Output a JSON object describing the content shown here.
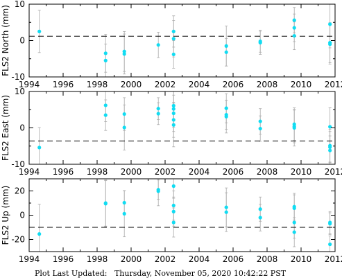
{
  "footer": "Plot Last Updated:   Thursday, November 05, 2020 10:42:22 PST",
  "colors": {
    "point": "#11dcf2",
    "errorbar": "#aaaaaa",
    "axis": "#000000",
    "mean_line": "#000000"
  },
  "chart_data": [
    {
      "type": "scatter",
      "ylabel": "FLS2 North (mm)",
      "xlim": [
        1994,
        2012
      ],
      "ylim": [
        -10,
        10
      ],
      "xticks": [
        1994,
        1996,
        1998,
        2000,
        2002,
        2004,
        2006,
        2008,
        2010,
        2012
      ],
      "yticks": [
        -10,
        0,
        10
      ],
      "mean": 1.2,
      "points": [
        {
          "x": 1994.6,
          "y": 2.5,
          "err": 5.8
        },
        {
          "x": 1998.5,
          "y": -3.5,
          "err": 5.2
        },
        {
          "x": 1998.5,
          "y": -5.5,
          "err": 4.5
        },
        {
          "x": 1999.6,
          "y": -3.0,
          "err": 5.5
        },
        {
          "x": 1999.6,
          "y": -3.7,
          "err": 5.5
        },
        {
          "x": 2001.6,
          "y": -1.2,
          "err": 3.5
        },
        {
          "x": 2002.5,
          "y": 2.5,
          "err": 4.3
        },
        {
          "x": 2002.5,
          "y": 0.5,
          "err": 5.0
        },
        {
          "x": 2002.5,
          "y": -3.8,
          "err": 3.8
        },
        {
          "x": 2005.6,
          "y": -1.5,
          "err": 5.5
        },
        {
          "x": 2005.6,
          "y": -3.2,
          "err": 3.8
        },
        {
          "x": 2007.6,
          "y": -0.2,
          "err": 3.0
        },
        {
          "x": 2007.6,
          "y": -0.6,
          "err": 3.2
        },
        {
          "x": 2009.6,
          "y": 5.6,
          "err": 3.5
        },
        {
          "x": 2009.6,
          "y": 3.5,
          "err": 3.8
        },
        {
          "x": 2009.6,
          "y": 1.3,
          "err": 3.8
        },
        {
          "x": 2011.7,
          "y": 4.5,
          "err": 6.5
        },
        {
          "x": 2011.7,
          "y": -0.6,
          "err": 5.5
        },
        {
          "x": 2011.7,
          "y": -1.0,
          "err": 5.5
        }
      ]
    },
    {
      "type": "scatter",
      "ylabel": "FLS2 East (mm)",
      "xlim": [
        1994,
        2012
      ],
      "ylim": [
        -10,
        10
      ],
      "xticks": [
        1994,
        1996,
        1998,
        2000,
        2002,
        2004,
        2006,
        2008,
        2010,
        2012
      ],
      "yticks": [
        -10,
        0,
        10
      ],
      "mean": -3.6,
      "points": [
        {
          "x": 1994.6,
          "y": -5.4,
          "err": 5.5
        },
        {
          "x": 1998.5,
          "y": 6.2,
          "err": 4.5
        },
        {
          "x": 1998.5,
          "y": 3.5,
          "err": 4.2
        },
        {
          "x": 1999.6,
          "y": 3.8,
          "err": 4.5
        },
        {
          "x": 1999.6,
          "y": 0.1,
          "err": 6.2
        },
        {
          "x": 2001.6,
          "y": 5.3,
          "err": 3.0
        },
        {
          "x": 2001.6,
          "y": 3.9,
          "err": 3.0
        },
        {
          "x": 2002.5,
          "y": 6.1,
          "err": 5.0
        },
        {
          "x": 2002.5,
          "y": 5.2,
          "err": 5.0
        },
        {
          "x": 2002.5,
          "y": 4.0,
          "err": 5.0
        },
        {
          "x": 2002.5,
          "y": 2.2,
          "err": 4.8
        },
        {
          "x": 2002.5,
          "y": 0.8,
          "err": 6.0
        },
        {
          "x": 2005.6,
          "y": 5.4,
          "err": 4.0
        },
        {
          "x": 2005.6,
          "y": 3.6,
          "err": 4.0
        },
        {
          "x": 2005.6,
          "y": 3.1,
          "err": 4.5
        },
        {
          "x": 2007.6,
          "y": 1.8,
          "err": 3.5
        },
        {
          "x": 2007.6,
          "y": -0.2,
          "err": 3.5
        },
        {
          "x": 2009.6,
          "y": 1.0,
          "err": 4.5
        },
        {
          "x": 2009.6,
          "y": 0.4,
          "err": 4.5
        },
        {
          "x": 2009.6,
          "y": 0.0,
          "err": 5.0
        },
        {
          "x": 2011.7,
          "y": 0.3,
          "err": 5.2
        },
        {
          "x": 2011.7,
          "y": -4.9,
          "err": 4.5
        },
        {
          "x": 2011.7,
          "y": -5.3,
          "err": 4.3
        },
        {
          "x": 2011.7,
          "y": -6.2,
          "err": 4.0
        }
      ]
    },
    {
      "type": "scatter",
      "ylabel": "FLS2 Up (mm)",
      "xlim": [
        1994,
        2012
      ],
      "ylim": [
        -30,
        30
      ],
      "xticks": [
        1994,
        1996,
        1998,
        2000,
        2002,
        2004,
        2006,
        2008,
        2010,
        2012
      ],
      "yticks": [
        -20,
        0,
        20
      ],
      "mean": -10,
      "points": [
        {
          "x": 1994.6,
          "y": -15.5,
          "err": 24.5
        },
        {
          "x": 1998.5,
          "y": 10.0,
          "err": 19.0
        },
        {
          "x": 1998.5,
          "y": 9.5,
          "err": 19.0
        },
        {
          "x": 1999.6,
          "y": 10.3,
          "err": 10.0
        },
        {
          "x": 1999.6,
          "y": 1.2,
          "err": 19.0
        },
        {
          "x": 2001.6,
          "y": 21.0,
          "err": 8.0
        },
        {
          "x": 2001.6,
          "y": 19.8,
          "err": 12.0
        },
        {
          "x": 2002.5,
          "y": 24.0,
          "err": 10.0
        },
        {
          "x": 2002.5,
          "y": 8.0,
          "err": 12.0
        },
        {
          "x": 2002.5,
          "y": 3.0,
          "err": 12.0
        },
        {
          "x": 2002.5,
          "y": -6.0,
          "err": 12.0
        },
        {
          "x": 2005.6,
          "y": 6.5,
          "err": 16.0
        },
        {
          "x": 2005.6,
          "y": 2.5,
          "err": 16.0
        },
        {
          "x": 2007.6,
          "y": 5.0,
          "err": 10.0
        },
        {
          "x": 2007.6,
          "y": -2.0,
          "err": 11.0
        },
        {
          "x": 2009.6,
          "y": 7.0,
          "err": 11.0
        },
        {
          "x": 2009.6,
          "y": 5.8,
          "err": 11.0
        },
        {
          "x": 2009.6,
          "y": -6.0,
          "err": 13.0
        },
        {
          "x": 2009.6,
          "y": -14.0,
          "err": 12.0
        },
        {
          "x": 2011.7,
          "y": -6.0,
          "err": 9.0
        },
        {
          "x": 2011.7,
          "y": -7.0,
          "err": 9.0
        },
        {
          "x": 2011.7,
          "y": -24.0,
          "err": 7.0
        }
      ]
    }
  ]
}
